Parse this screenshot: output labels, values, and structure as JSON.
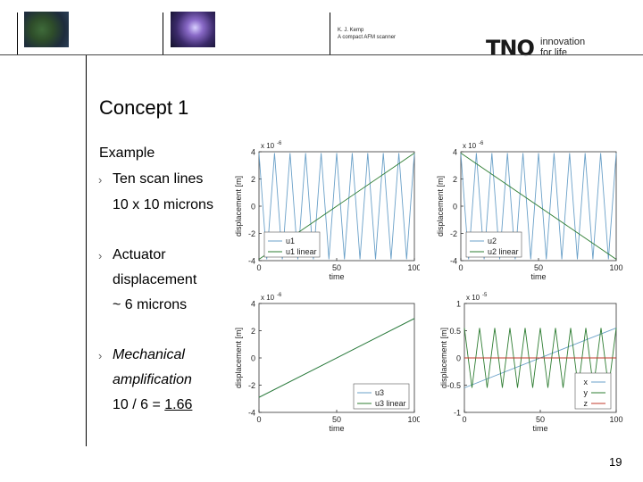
{
  "header": {
    "author": "K. J. Kemp",
    "doc_title": "A compact AFM scanner",
    "logo": {
      "brand": "TNO",
      "tagline_line1": "innovation",
      "tagline_line2": "for life",
      "color": "#1a1a1a"
    }
  },
  "slide": {
    "title": "Concept 1",
    "subheading": "Example",
    "bullets": [
      {
        "text": "Ten scan lines",
        "sub": [
          "10 x 10 microns"
        ]
      },
      {
        "text": "Actuator",
        "sub": [
          "displacement",
          "~ 6 microns"
        ]
      },
      {
        "text": "Mechanical",
        "sub": [
          "amplification",
          "10 / 6 = 1.66"
        ]
      }
    ],
    "page_number": "19"
  },
  "chart_data": [
    {
      "type": "line",
      "xlabel": "time",
      "ylabel": "displacement [m]",
      "y_scale_label": "x 10",
      "y_exponent": "-6",
      "xlim": [
        0,
        100
      ],
      "ylim": [
        -4,
        4
      ],
      "x_ticks": [
        "0",
        "50",
        "100"
      ],
      "y_ticks": [
        "4",
        "2",
        "0",
        "-2",
        "-4"
      ],
      "legend_position": "bottom-left",
      "series": [
        {
          "name": "u1",
          "kind": "triangle",
          "amplitude": 3.9,
          "period": 10,
          "color": "#6aa0c8"
        },
        {
          "name": "u1 linear",
          "kind": "linear",
          "from": [
            0,
            -3.9
          ],
          "to": [
            100,
            3.9
          ],
          "color": "#2e7d32"
        }
      ]
    },
    {
      "type": "line",
      "xlabel": "time",
      "ylabel": "displacement [m]",
      "y_scale_label": "x 10",
      "y_exponent": "-6",
      "xlim": [
        0,
        100
      ],
      "ylim": [
        -4,
        4
      ],
      "x_ticks": [
        "0",
        "50",
        "100"
      ],
      "y_ticks": [
        "4",
        "2",
        "0",
        "-2",
        "-4"
      ],
      "legend_position": "bottom-left",
      "series": [
        {
          "name": "u2",
          "kind": "triangle",
          "amplitude": 3.9,
          "period": 10,
          "color": "#6aa0c8"
        },
        {
          "name": "u2 linear",
          "kind": "linear",
          "from": [
            0,
            3.9
          ],
          "to": [
            100,
            -3.9
          ],
          "color": "#2e7d32"
        }
      ]
    },
    {
      "type": "line",
      "xlabel": "time",
      "ylabel": "displacement [m]",
      "y_scale_label": "x 10",
      "y_exponent": "-6",
      "xlim": [
        0,
        100
      ],
      "ylim": [
        -4,
        4
      ],
      "x_ticks": [
        "0",
        "50",
        "100"
      ],
      "y_ticks": [
        "4",
        "2",
        "0",
        "-2",
        "-4"
      ],
      "legend_position": "bottom-right",
      "series": [
        {
          "name": "u3",
          "kind": "linear",
          "from": [
            0,
            -2.9
          ],
          "to": [
            100,
            2.9
          ],
          "color": "#6aa0c8"
        },
        {
          "name": "u3 linear",
          "kind": "linear",
          "from": [
            0,
            -2.9
          ],
          "to": [
            100,
            2.9
          ],
          "color": "#2e7d32"
        }
      ]
    },
    {
      "type": "line",
      "xlabel": "time",
      "ylabel": "displacement [m]",
      "y_scale_label": "x 10",
      "y_exponent": "-5",
      "xlim": [
        0,
        100
      ],
      "ylim": [
        -1,
        1
      ],
      "x_ticks": [
        "0",
        "50",
        "100"
      ],
      "y_ticks": [
        "1",
        "0.5",
        "0",
        "-0.5",
        "-1"
      ],
      "legend_position": "bottom-right",
      "series": [
        {
          "name": "x",
          "kind": "linear",
          "from": [
            0,
            -0.55
          ],
          "to": [
            100,
            0.55
          ],
          "color": "#6aa0c8"
        },
        {
          "name": "y",
          "kind": "triangle",
          "amplitude": 0.55,
          "period": 10,
          "color": "#2e7d32"
        },
        {
          "name": "z",
          "kind": "linear",
          "from": [
            0,
            0
          ],
          "to": [
            100,
            0
          ],
          "color": "#c0392b"
        }
      ]
    }
  ]
}
